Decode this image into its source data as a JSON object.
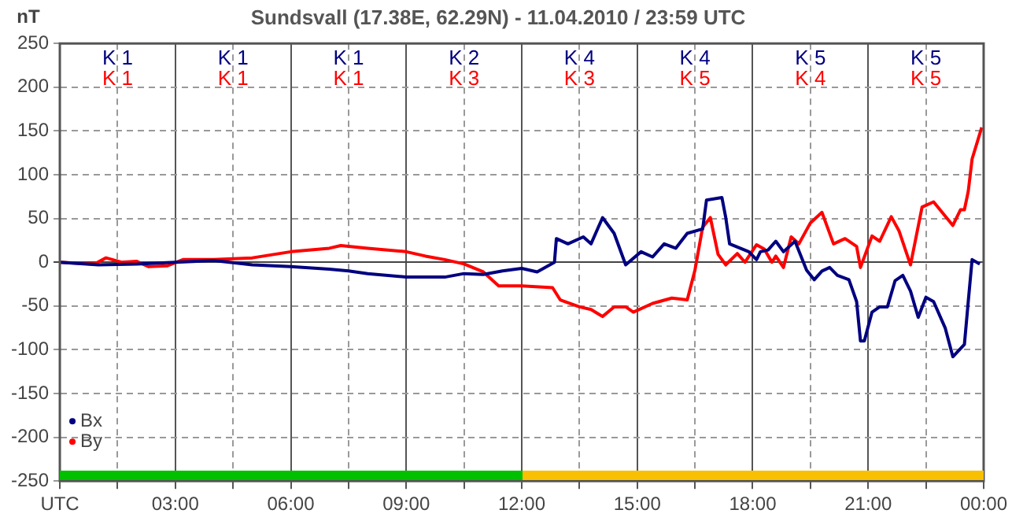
{
  "chart_data": {
    "type": "line",
    "title": "Sundsvall (17.38E, 62.29N) - 11.04.2010 / 23:59 UTC",
    "ylabel": "nT",
    "xlim": [
      0,
      24
    ],
    "ylim": [
      -250,
      250
    ],
    "xticks": [
      {
        "value": 0,
        "label": "UTC"
      },
      {
        "value": 1.5,
        "label": null
      },
      {
        "value": 3,
        "label": "03:00"
      },
      {
        "value": 4.5,
        "label": null
      },
      {
        "value": 6,
        "label": "06:00"
      },
      {
        "value": 7.5,
        "label": null
      },
      {
        "value": 9,
        "label": "09:00"
      },
      {
        "value": 10.5,
        "label": null
      },
      {
        "value": 12,
        "label": "12:00"
      },
      {
        "value": 13.5,
        "label": null
      },
      {
        "value": 15,
        "label": "15:00"
      },
      {
        "value": 16.5,
        "label": null
      },
      {
        "value": 18,
        "label": "18:00"
      },
      {
        "value": 19.5,
        "label": null
      },
      {
        "value": 21,
        "label": "21:00"
      },
      {
        "value": 22.5,
        "label": null
      },
      {
        "value": 24,
        "label": "00:00"
      }
    ],
    "yticks": [
      -250,
      -200,
      -150,
      -100,
      -50,
      0,
      50,
      100,
      150,
      200,
      250
    ],
    "grid": true,
    "legend": "bottom left",
    "line_style": "solid",
    "series": [
      {
        "name": "Bx",
        "color": "#000080",
        "x": [
          0,
          1,
          2,
          3,
          4,
          5,
          6,
          7,
          7.5,
          8,
          9,
          10,
          10.5,
          11,
          11.5,
          12,
          12.4,
          12.85,
          12.9,
          13.2,
          13.6,
          13.8,
          14.1,
          14.4,
          14.7,
          15.1,
          15.4,
          15.7,
          16,
          16.3,
          16.7,
          16.8,
          17.2,
          17.3,
          17.4,
          17.9,
          18.1,
          18.2,
          18.4,
          18.6,
          18.8,
          19.1,
          19.4,
          19.6,
          19.8,
          20,
          20.2,
          20.5,
          20.7,
          20.8,
          20.9,
          21.1,
          21.3,
          21.5,
          21.7,
          21.9,
          22.1,
          22.3,
          22.5,
          22.7,
          23,
          23.2,
          23.5,
          23.6,
          23.7,
          23.9
        ],
        "values": [
          0,
          -3,
          -2,
          0,
          2,
          -3,
          -5,
          -8,
          -10,
          -13,
          -17,
          -17,
          -13,
          -14,
          -10,
          -7,
          -11,
          0,
          27,
          21,
          29,
          21,
          51,
          33,
          -3,
          12,
          6,
          21,
          16,
          33,
          38,
          71,
          74,
          51,
          21,
          12,
          3,
          12,
          14,
          24,
          12,
          24,
          -9,
          -20,
          -10,
          -6,
          -15,
          -20,
          -45,
          -90,
          -90,
          -57,
          -51,
          -51,
          -21,
          -15,
          -33,
          -63,
          -40,
          -45,
          -75,
          -108,
          -94,
          -45,
          3,
          -2
        ]
      },
      {
        "name": "By",
        "color": "#ff0000",
        "x": [
          0,
          0.9,
          1.2,
          1.6,
          2,
          2.3,
          2.8,
          3.2,
          4,
          5,
          6,
          7,
          7.3,
          8,
          9,
          9.5,
          10,
          10.5,
          11,
          11.4,
          12,
          12.8,
          13,
          13.5,
          13.8,
          14.1,
          14.4,
          14.7,
          14.9,
          15.4,
          15.9,
          16.3,
          16.5,
          16.7,
          16.9,
          17.1,
          17.3,
          17.6,
          17.8,
          18.1,
          18.3,
          18.5,
          18.6,
          18.8,
          19,
          19.2,
          19.5,
          19.8,
          20.1,
          20.4,
          20.7,
          20.8,
          21.1,
          21.3,
          21.6,
          21.8,
          22.1,
          22.4,
          22.7,
          23.2,
          23.4,
          23.5,
          23.6,
          23.7,
          23.95
        ],
        "values": [
          0,
          -2,
          5,
          0,
          1,
          -5,
          -4,
          3,
          3,
          5,
          12,
          16,
          19,
          16,
          12,
          7,
          3,
          -2,
          -11,
          -27,
          -27,
          -29,
          -43,
          -51,
          -54,
          -62,
          -51,
          -51,
          -57,
          -47,
          -41,
          -43,
          -9,
          40,
          51,
          9,
          -3,
          10,
          0,
          20,
          15,
          0,
          7,
          -6,
          29,
          21,
          45,
          57,
          21,
          27,
          18,
          -6,
          30,
          24,
          52,
          36,
          -3,
          63,
          69,
          42,
          60,
          60,
          81,
          118,
          154
        ]
      }
    ],
    "annotations": [
      "K 1",
      "K 1",
      "K 1",
      "K 2",
      "K 4",
      "K 4",
      "K 5",
      "K 5",
      "K 1",
      "K 1",
      "K 1",
      "K 3",
      "K 3",
      "K 5",
      "K 4",
      "K 5"
    ]
  }
}
